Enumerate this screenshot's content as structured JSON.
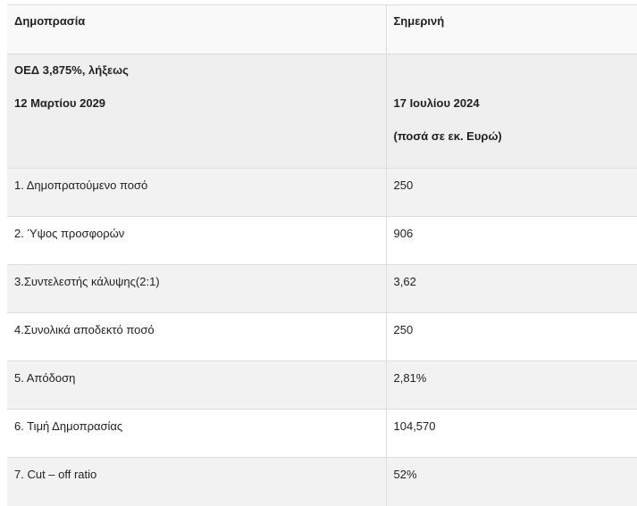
{
  "header": {
    "col1": "Δημοπρασία",
    "col2": "Σημερινή"
  },
  "subheader": {
    "bond": "ΟΕΔ 3,875%, λήξεως",
    "maturity": "12 Μαρτίου 2029",
    "date": "17 Ιουλίου  2024",
    "unit_note": "(ποσά σε εκ. Ευρώ)"
  },
  "rows": [
    {
      "label": "1. Δημοπρατούμενο ποσό",
      "value": "250"
    },
    {
      "label": "2. Ύψος προσφορών",
      "value": "906"
    },
    {
      "label": "3.Συντελεστής κάλυψης(2:1)",
      "value": "3,62"
    },
    {
      "label": "4.Συνολικά αποδεκτό ποσό",
      "value": "250"
    },
    {
      "label": "5. Απόδοση",
      "value": "2,81%"
    },
    {
      "label": "6. Τιμή Δημοπρασίας",
      "value": "104,570"
    },
    {
      "label": "7. Cut – off ratio",
      "value": "52%"
    }
  ]
}
